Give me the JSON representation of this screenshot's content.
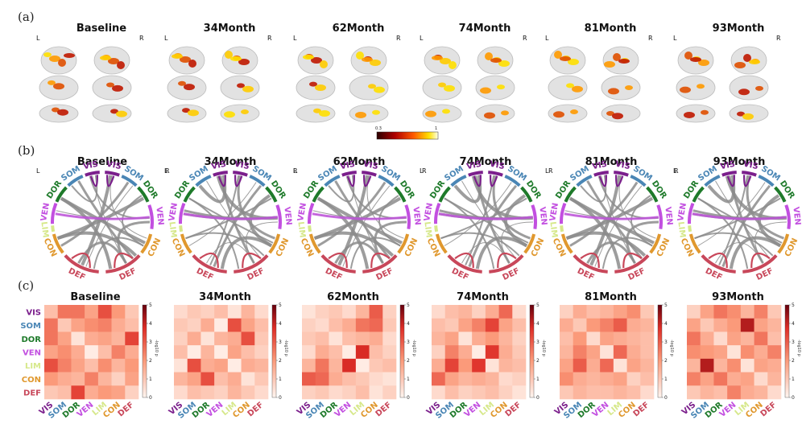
{
  "panel_labels": [
    "(a)",
    "(b)",
    "(c)"
  ],
  "timepoints": [
    "Baseline",
    "34Month",
    "62Month",
    "74Month",
    "81Month",
    "93Month"
  ],
  "hemisphere_labels": {
    "left": "L",
    "right": "R"
  },
  "networks": [
    {
      "name": "VIS",
      "color": "#7b1f8c"
    },
    {
      "name": "SOM",
      "color": "#4a86b5"
    },
    {
      "name": "DOR",
      "color": "#1e7a2a"
    },
    {
      "name": "VEN",
      "color": "#c24fe0"
    },
    {
      "name": "LIM",
      "color": "#d6e88a"
    },
    {
      "name": "CON",
      "color": "#e0982e"
    },
    {
      "name": "DEF",
      "color": "#c8475a"
    }
  ],
  "brain_colorbar": {
    "min_label": "0.3",
    "max_label": "1"
  },
  "matrix_colorbar": {
    "ticks": [
      "0",
      "1",
      "2",
      "3",
      "4",
      "5"
    ],
    "title": "-log10 p"
  },
  "chart_data": [
    {
      "type": "heatmap",
      "title": "Baseline",
      "rows": [
        "VIS",
        "SOM",
        "DOR",
        "VEN",
        "LIM",
        "CON",
        "DEF"
      ],
      "cols": [
        "VIS",
        "SOM",
        "DOR",
        "VEN",
        "LIM",
        "CON",
        "DEF"
      ],
      "range": [
        0,
        5
      ],
      "values": [
        [
          1.2,
          2.6,
          2.6,
          1.8,
          3.2,
          2.0,
          1.0
        ],
        [
          2.6,
          1.0,
          1.8,
          2.2,
          2.4,
          1.6,
          1.2
        ],
        [
          2.6,
          1.8,
          0.4,
          1.6,
          1.8,
          1.4,
          3.4
        ],
        [
          1.8,
          2.2,
          1.6,
          0.2,
          1.2,
          2.4,
          1.6
        ],
        [
          3.2,
          2.4,
          1.8,
          1.2,
          2.2,
          1.4,
          2.0
        ],
        [
          2.0,
          1.6,
          1.4,
          2.4,
          1.4,
          0.8,
          1.8
        ],
        [
          1.0,
          1.2,
          3.4,
          1.6,
          2.0,
          1.8,
          0.8
        ]
      ]
    },
    {
      "type": "heatmap",
      "title": "34Month",
      "rows": [
        "VIS",
        "SOM",
        "DOR",
        "VEN",
        "LIM",
        "CON",
        "DEF"
      ],
      "cols": [
        "VIS",
        "SOM",
        "DOR",
        "VEN",
        "LIM",
        "CON",
        "DEF"
      ],
      "range": [
        0,
        5
      ],
      "values": [
        [
          0.6,
          1.0,
          0.8,
          1.2,
          0.4,
          1.4,
          0.6
        ],
        [
          1.0,
          0.8,
          1.6,
          0.2,
          3.2,
          1.8,
          1.2
        ],
        [
          0.8,
          1.6,
          0.4,
          1.4,
          1.6,
          3.2,
          1.0
        ],
        [
          1.2,
          0.2,
          1.4,
          0.2,
          1.8,
          1.2,
          0.8
        ],
        [
          0.4,
          3.2,
          1.6,
          1.8,
          0.2,
          1.6,
          1.4
        ],
        [
          1.4,
          1.8,
          3.2,
          1.2,
          1.6,
          0.4,
          1.0
        ],
        [
          0.6,
          1.2,
          1.0,
          0.8,
          1.4,
          1.0,
          0.6
        ]
      ]
    },
    {
      "type": "heatmap",
      "title": "62Month",
      "rows": [
        "VIS",
        "SOM",
        "DOR",
        "VEN",
        "LIM",
        "CON",
        "DEF"
      ],
      "cols": [
        "VIS",
        "SOM",
        "DOR",
        "VEN",
        "LIM",
        "CON",
        "DEF"
      ],
      "range": [
        0,
        5
      ],
      "values": [
        [
          0.4,
          0.8,
          1.0,
          0.6,
          1.4,
          3.0,
          0.8
        ],
        [
          0.8,
          0.6,
          1.2,
          1.6,
          2.6,
          2.8,
          1.0
        ],
        [
          1.0,
          1.2,
          0.4,
          1.2,
          1.4,
          1.6,
          0.6
        ],
        [
          0.6,
          1.6,
          1.2,
          0.2,
          3.8,
          1.2,
          0.8
        ],
        [
          1.4,
          2.6,
          1.4,
          3.8,
          0.2,
          1.0,
          1.2
        ],
        [
          3.0,
          2.8,
          1.6,
          1.2,
          1.0,
          0.6,
          0.4
        ],
        [
          0.8,
          1.0,
          0.6,
          0.8,
          1.2,
          0.4,
          0.8
        ]
      ]
    },
    {
      "type": "heatmap",
      "title": "74Month",
      "rows": [
        "VIS",
        "SOM",
        "DOR",
        "VEN",
        "LIM",
        "CON",
        "DEF"
      ],
      "cols": [
        "VIS",
        "SOM",
        "DOR",
        "VEN",
        "LIM",
        "CON",
        "DEF"
      ],
      "range": [
        0,
        5
      ],
      "values": [
        [
          0.6,
          1.2,
          1.4,
          0.8,
          1.6,
          2.8,
          0.6
        ],
        [
          1.2,
          1.0,
          1.8,
          2.4,
          3.4,
          1.8,
          1.2
        ],
        [
          1.4,
          1.8,
          0.4,
          1.6,
          2.0,
          1.4,
          0.8
        ],
        [
          0.8,
          2.4,
          1.6,
          0.2,
          3.6,
          1.6,
          1.0
        ],
        [
          1.6,
          3.4,
          2.0,
          3.6,
          0.4,
          1.4,
          1.2
        ],
        [
          2.8,
          1.8,
          1.4,
          1.6,
          1.4,
          0.6,
          0.8
        ],
        [
          0.6,
          1.2,
          0.8,
          1.0,
          1.2,
          0.8,
          0.4
        ]
      ]
    },
    {
      "type": "heatmap",
      "title": "81Month",
      "rows": [
        "VIS",
        "SOM",
        "DOR",
        "VEN",
        "LIM",
        "CON",
        "DEF"
      ],
      "cols": [
        "VIS",
        "SOM",
        "DOR",
        "VEN",
        "LIM",
        "CON",
        "DEF"
      ],
      "range": [
        0,
        5
      ],
      "values": [
        [
          0.8,
          1.6,
          1.2,
          1.4,
          1.8,
          2.2,
          1.0
        ],
        [
          1.6,
          1.0,
          2.0,
          2.4,
          3.0,
          1.6,
          1.4
        ],
        [
          1.2,
          2.0,
          0.6,
          1.8,
          1.6,
          1.4,
          1.2
        ],
        [
          1.4,
          2.4,
          1.8,
          0.4,
          2.8,
          1.6,
          1.2
        ],
        [
          1.8,
          3.0,
          1.6,
          2.8,
          0.4,
          1.8,
          1.4
        ],
        [
          2.2,
          1.6,
          1.4,
          1.6,
          1.8,
          0.8,
          1.2
        ],
        [
          1.0,
          1.4,
          1.2,
          1.2,
          1.4,
          1.2,
          0.6
        ]
      ]
    },
    {
      "type": "heatmap",
      "title": "93Month",
      "rows": [
        "VIS",
        "SOM",
        "DOR",
        "VEN",
        "LIM",
        "CON",
        "DEF"
      ],
      "cols": [
        "VIS",
        "SOM",
        "DOR",
        "VEN",
        "LIM",
        "CON",
        "DEF"
      ],
      "range": [
        0,
        5
      ],
      "values": [
        [
          0.8,
          1.8,
          2.6,
          2.2,
          1.4,
          2.4,
          1.0
        ],
        [
          1.8,
          1.0,
          1.6,
          2.0,
          4.2,
          1.8,
          1.4
        ],
        [
          2.6,
          1.6,
          0.6,
          1.8,
          1.4,
          2.6,
          1.2
        ],
        [
          2.2,
          2.0,
          1.8,
          0.4,
          2.2,
          1.6,
          2.4
        ],
        [
          1.4,
          4.2,
          1.4,
          2.2,
          0.4,
          1.8,
          1.6
        ],
        [
          2.4,
          1.8,
          2.6,
          1.6,
          1.8,
          0.6,
          1.4
        ],
        [
          1.0,
          1.4,
          1.2,
          2.4,
          1.6,
          1.4,
          0.6
        ]
      ]
    }
  ]
}
